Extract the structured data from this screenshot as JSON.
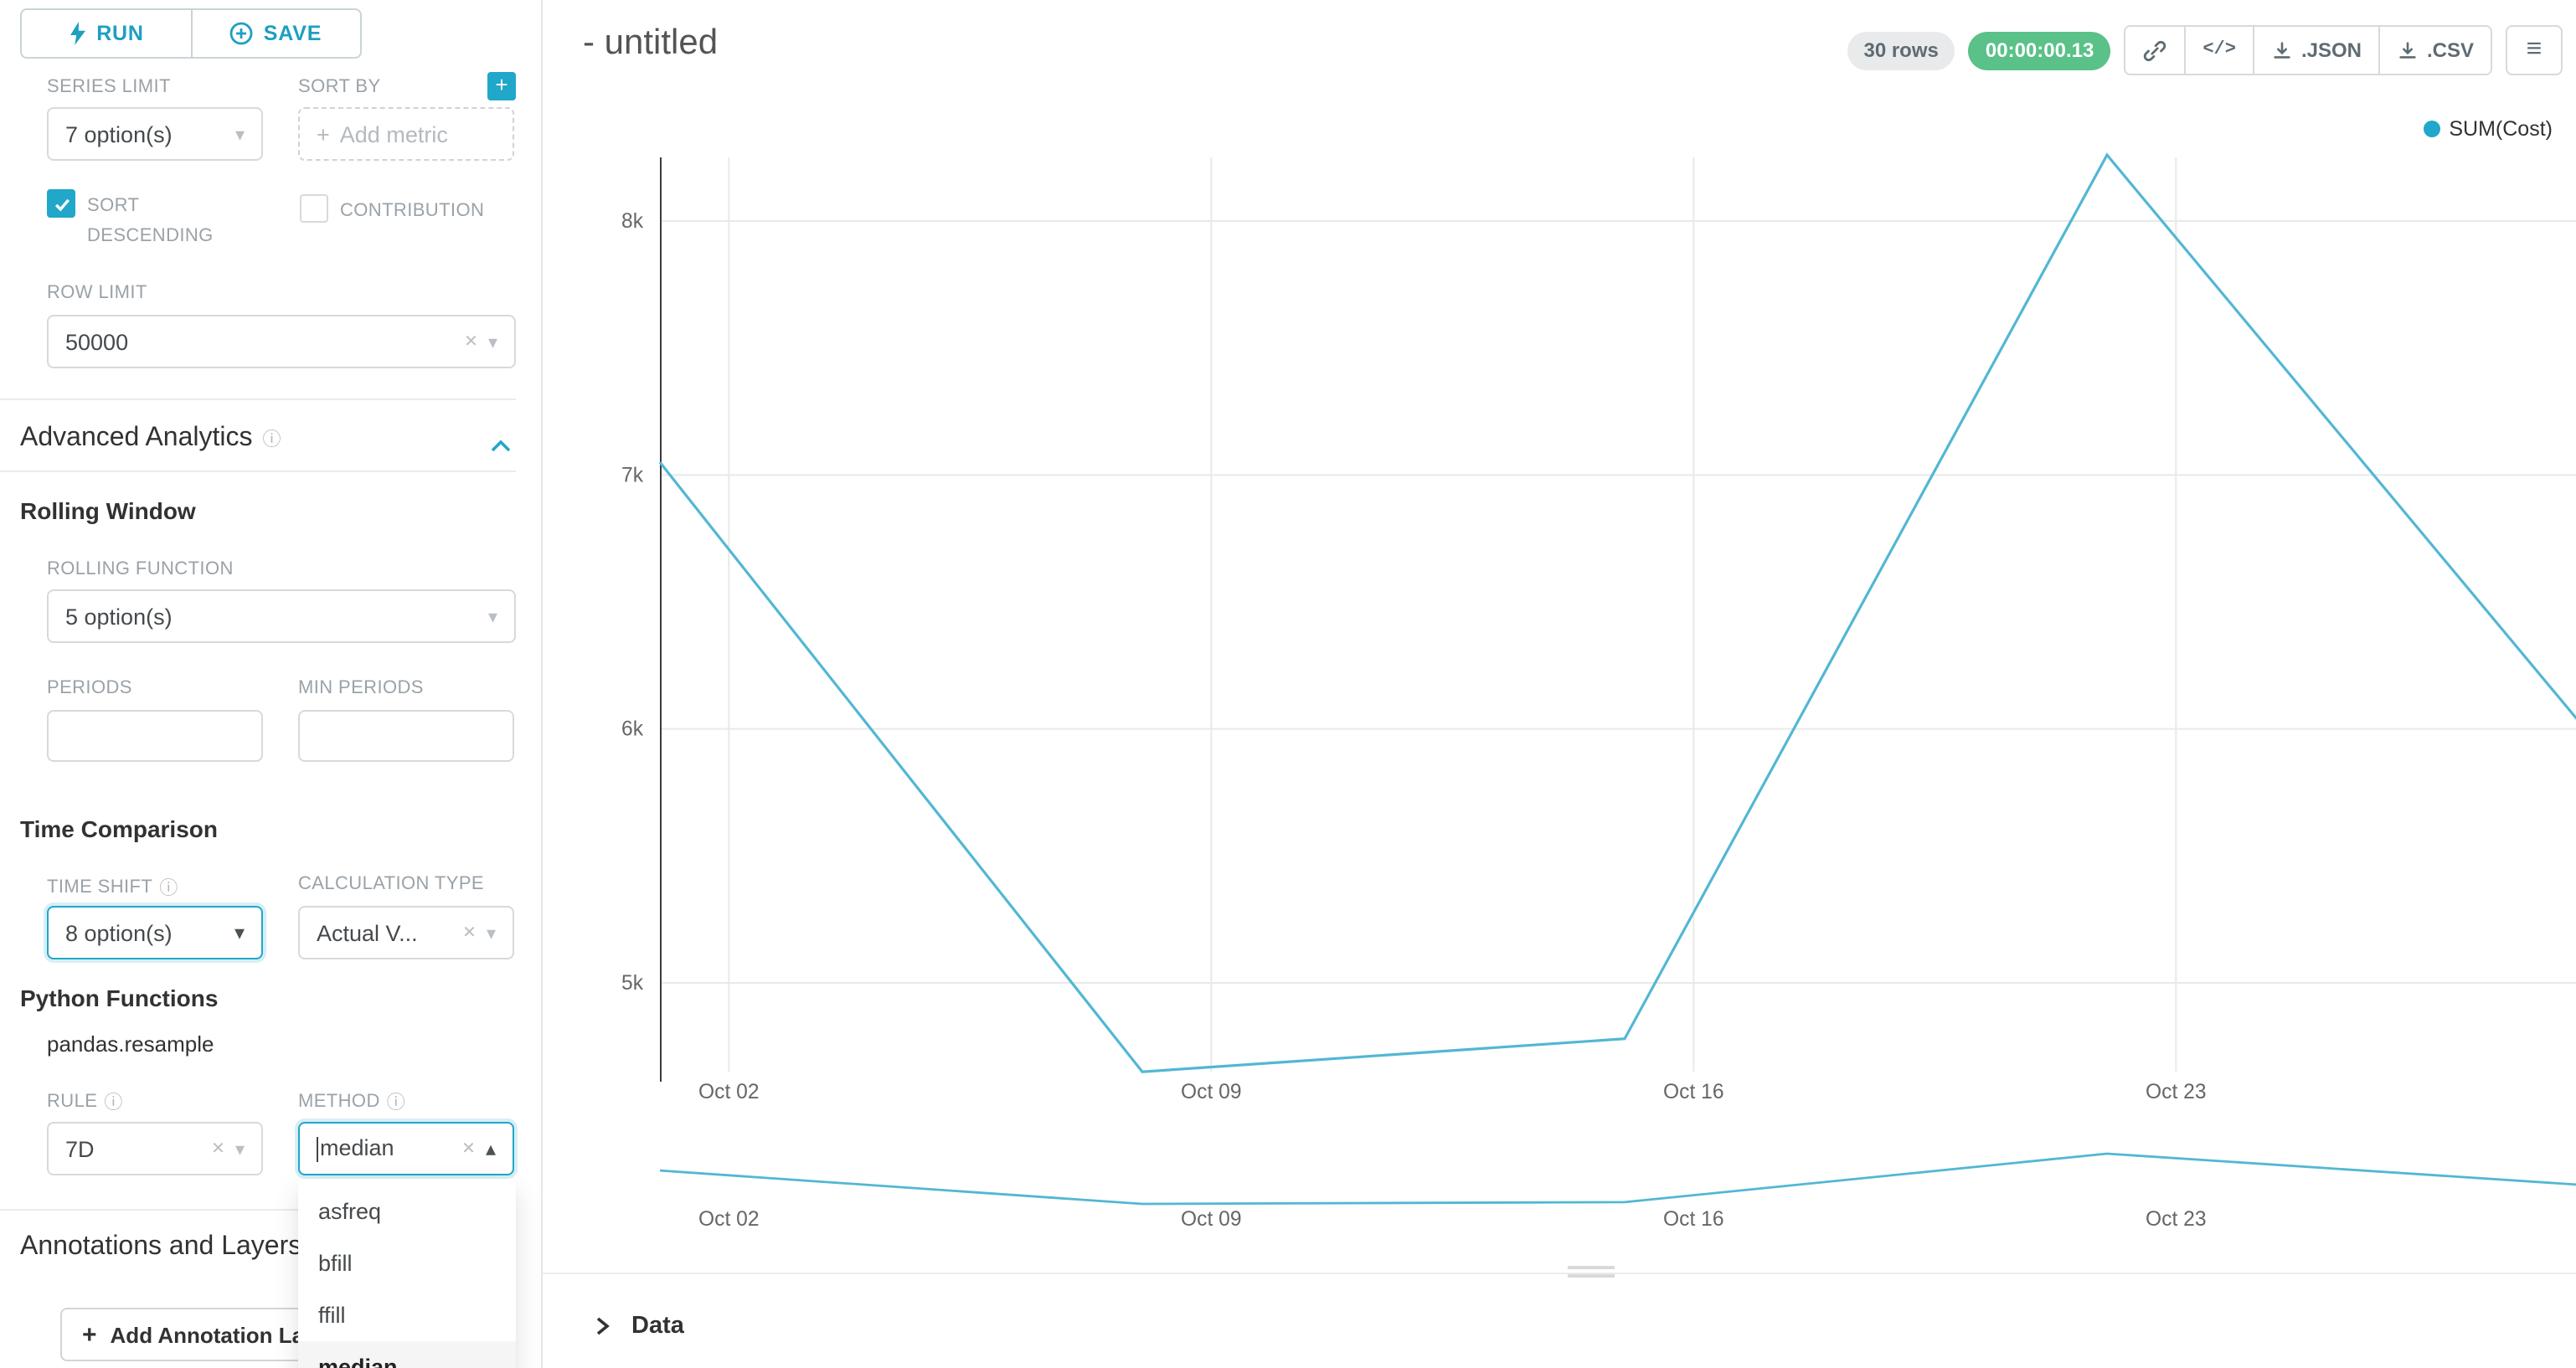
{
  "sidebar": {
    "run_label": "RUN",
    "save_label": "SAVE",
    "series_limit_label": "SERIES LIMIT",
    "series_limit_value": "7 option(s)",
    "sort_by_label": "SORT BY",
    "sort_by_placeholder": "Add metric",
    "sort_descending_label": "SORT DESCENDING",
    "contribution_label": "CONTRIBUTION",
    "row_limit_label": "ROW LIMIT",
    "row_limit_value": "50000",
    "advanced_title": "Advanced Analytics",
    "rolling_window_title": "Rolling Window",
    "rolling_function_label": "ROLLING FUNCTION",
    "rolling_function_value": "5 option(s)",
    "periods_label": "PERIODS",
    "min_periods_label": "MIN PERIODS",
    "time_comparison_title": "Time Comparison",
    "time_shift_label": "TIME SHIFT",
    "time_shift_value": "8 option(s)",
    "calculation_type_label": "CALCULATION TYPE",
    "calculation_type_value": "Actual V...",
    "python_functions_title": "Python Functions",
    "pandas_resample_label": "pandas.resample",
    "rule_label": "RULE",
    "rule_value": "7D",
    "method_label": "METHOD",
    "method_value": "median",
    "method_options": [
      "asfreq",
      "bfill",
      "ffill",
      "median"
    ],
    "method_selected": "median",
    "annotations_title": "Annotations and Layers",
    "add_annotation_label": "Add Annotation Layer"
  },
  "header": {
    "title": "- untitled",
    "rows_badge": "30 rows",
    "timer_badge": "00:00:00.13",
    "json_label": ".JSON",
    "csv_label": ".CSV"
  },
  "data_panel": {
    "title": "Data"
  },
  "colors": {
    "accent": "#20a7c9",
    "timer_green": "#5ac189",
    "line": "#52b7d3"
  },
  "chart_data": {
    "type": "line",
    "title": "- untitled",
    "series": [
      {
        "name": "SUM(Cost)",
        "color": "#52b7d3",
        "x_days": [
          0,
          7,
          14,
          21,
          28
        ],
        "values": [
          7050,
          4650,
          4780,
          8260,
          5980
        ]
      }
    ],
    "x_ticks": [
      {
        "label": "Oct 02",
        "day": 1
      },
      {
        "label": "Oct 09",
        "day": 8
      },
      {
        "label": "Oct 16",
        "day": 15
      },
      {
        "label": "Oct 23",
        "day": 22
      }
    ],
    "y_ticks": [
      {
        "label": "8k",
        "value": 8000
      },
      {
        "label": "7k",
        "value": 7000
      },
      {
        "label": "6k",
        "value": 6000
      },
      {
        "label": "5k",
        "value": 5000
      }
    ],
    "x_domain_days": [
      0,
      28
    ],
    "ylim": [
      4450,
      8400
    ],
    "grid": true,
    "legend_position": "top-right",
    "has_mini_preview": true
  }
}
